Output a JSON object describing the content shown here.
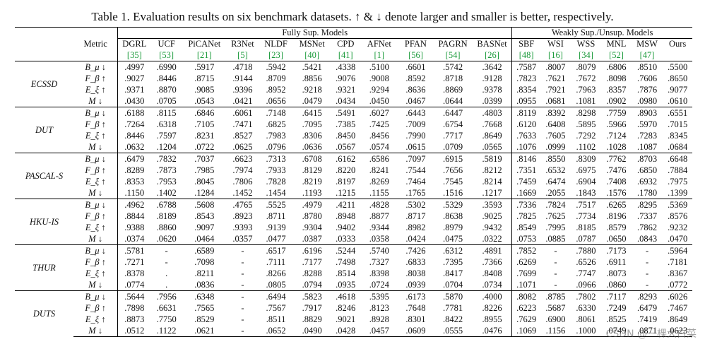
{
  "caption": "Table 1. Evaluation results on six benchmark datasets. ↑ & ↓ denote larger and smaller is better, respectively.",
  "groups": {
    "fully": "Fully Sup. Models",
    "weakly": "Weakly Sup./Unsup. Models"
  },
  "metric_header": "Metric",
  "methods": [
    "DGRL",
    "UCF",
    "PiCANet",
    "R3Net",
    "NLDF",
    "MSNet",
    "CPD",
    "AFNet",
    "PFAN",
    "PAGRN",
    "BASNet",
    "SBF",
    "WSI",
    "WSS",
    "MNL",
    "MSW",
    "Ours"
  ],
  "refs": [
    "[35]",
    "[53]",
    "[21]",
    "[5]",
    "[23]",
    "[40]",
    "[41]",
    "[1]",
    "[56]",
    "[54]",
    "[26]",
    "[48]",
    "[16]",
    "[34]",
    "[52]",
    "[47]",
    ""
  ],
  "metrics": [
    "B_μ ↓",
    "F_β ↑",
    "E_ξ ↑",
    "M ↓"
  ],
  "datasets": [
    {
      "name": "ECSSD",
      "rows": [
        [
          ".4997",
          ".6990",
          ".5917",
          ".4718",
          ".5942",
          ".5421",
          ".4338",
          ".5100",
          ".6601",
          ".5742",
          ".3642",
          ".7587",
          ".8007",
          ".8079",
          ".6806",
          ".8510",
          ".5500"
        ],
        [
          ".9027",
          ".8446",
          ".8715",
          ".9144",
          ".8709",
          ".8856",
          ".9076",
          ".9008",
          ".8592",
          ".8718",
          ".9128",
          ".7823",
          ".7621",
          ".7672",
          ".8098",
          ".7606",
          ".8650"
        ],
        [
          ".9371",
          ".8870",
          ".9085",
          ".9396",
          ".8952",
          ".9218",
          ".9321",
          ".9294",
          ".8636",
          ".8869",
          ".9378",
          ".8354",
          ".7921",
          ".7963",
          ".8357",
          ".7876",
          ".9077"
        ],
        [
          ".0430",
          ".0705",
          ".0543",
          ".0421",
          ".0656",
          ".0479",
          ".0434",
          ".0450",
          ".0467",
          ".0644",
          ".0399",
          ".0955",
          ".0681",
          ".1081",
          ".0902",
          ".0980",
          ".0610"
        ]
      ],
      "bold": [
        [
          10,
          16
        ],
        [
          3,
          16
        ],
        [
          3,
          16
        ],
        [
          10,
          16
        ]
      ]
    },
    {
      "name": "DUT",
      "rows": [
        [
          ".6188",
          ".8115",
          ".6846",
          ".6061",
          ".7148",
          ".6415",
          ".5491",
          ".6027",
          ".6443",
          ".6447",
          ".4803",
          ".8119",
          ".8392",
          ".8298",
          ".7759",
          ".8903",
          ".6551"
        ],
        [
          ".7264",
          ".6318",
          ".7105",
          ".7471",
          ".6825",
          ".7095",
          ".7385",
          ".7425",
          ".7009",
          ".6754",
          ".7668",
          ".6120",
          ".6408",
          ".5895",
          ".5966",
          ".5970",
          ".7015"
        ],
        [
          ".8446",
          ".7597",
          ".8231",
          ".8527",
          ".7983",
          ".8306",
          ".8450",
          ".8456",
          ".7990",
          ".7717",
          ".8649",
          ".7633",
          ".7605",
          ".7292",
          ".7124",
          ".7283",
          ".8345"
        ],
        [
          ".0632",
          ".1204",
          ".0722",
          ".0625",
          ".0796",
          ".0636",
          ".0567",
          ".0574",
          ".0615",
          ".0709",
          ".0565",
          ".1076",
          ".0999",
          ".1102",
          ".1028",
          ".1087",
          ".0684"
        ]
      ],
      "bold": [
        [
          10,
          16
        ],
        [
          10,
          16
        ],
        [
          10,
          16
        ],
        [
          10,
          16
        ]
      ]
    },
    {
      "name": "PASCAL-S",
      "rows": [
        [
          ".6479",
          ".7832",
          ".7037",
          ".6623",
          ".7313",
          ".6708",
          ".6162",
          ".6586",
          ".7097",
          ".6915",
          ".5819",
          ".8146",
          ".8550",
          ".8309",
          ".7762",
          ".8703",
          ".6648"
        ],
        [
          ".8289",
          ".7873",
          ".7985",
          ".7974",
          ".7933",
          ".8129",
          ".8220",
          ".8241",
          ".7544",
          ".7656",
          ".8212",
          ".7351",
          ".6532",
          ".6975",
          ".7476",
          ".6850",
          ".7884"
        ],
        [
          ".8353",
          ".7953",
          ".8045",
          ".7806",
          ".7828",
          ".8219",
          ".8197",
          ".8269",
          ".7464",
          ".7545",
          ".8214",
          ".7459",
          ".6474",
          ".6904",
          ".7408",
          ".6932",
          ".7975"
        ],
        [
          ".1150",
          ".1402",
          ".1284",
          ".1452",
          ".1454",
          ".1193",
          ".1215",
          ".1155",
          ".1765",
          ".1516",
          ".1217",
          ".1669",
          ".2055",
          ".1843",
          ".1576",
          ".1780",
          ".1399"
        ]
      ],
      "bold": [
        [
          10,
          16
        ],
        [
          0,
          16
        ],
        [
          0,
          16
        ],
        [
          0,
          16
        ]
      ]
    },
    {
      "name": "HKU-IS",
      "rows": [
        [
          ".4962",
          ".6788",
          ".5608",
          ".4765",
          ".5525",
          ".4979",
          ".4211",
          ".4828",
          ".5302",
          ".5329",
          ".3593",
          ".7336",
          ".7824",
          ".7517",
          ".6265",
          ".8295",
          ".5369"
        ],
        [
          ".8844",
          ".8189",
          ".8543",
          ".8923",
          ".8711",
          ".8780",
          ".8948",
          ".8877",
          ".8717",
          ".8638",
          ".9025",
          ".7825",
          ".7625",
          ".7734",
          ".8196",
          ".7337",
          ".8576"
        ],
        [
          ".9388",
          ".8860",
          ".9097",
          ".9393",
          ".9139",
          ".9304",
          ".9402",
          ".9344",
          ".8982",
          ".8979",
          ".9432",
          ".8549",
          ".7995",
          ".8185",
          ".8579",
          ".7862",
          ".9232"
        ],
        [
          ".0374",
          ".0620",
          ".0464",
          ".0357",
          ".0477",
          ".0387",
          ".0333",
          ".0358",
          ".0424",
          ".0475",
          ".0322",
          ".0753",
          ".0885",
          ".0787",
          ".0650",
          ".0843",
          ".0470"
        ]
      ],
      "bold": [
        [
          10,
          16
        ],
        [
          10,
          16
        ],
        [
          10,
          16
        ],
        [
          10,
          16
        ]
      ]
    },
    {
      "name": "THUR",
      "rows": [
        [
          ".5781",
          "-",
          ".6589",
          "-",
          ".6517",
          ".6196",
          ".5244",
          ".5740",
          ".7426",
          ".6312",
          ".4891",
          ".7852",
          "-",
          ".7880",
          ".7173",
          "-",
          ".5964"
        ],
        [
          ".7271",
          "-",
          ".7098",
          "-",
          ".7111",
          ".7177",
          ".7498",
          ".7327",
          ".6833",
          ".7395",
          ".7366",
          ".6269",
          "-",
          ".6526",
          ".6911",
          "-",
          ".7181"
        ],
        [
          ".8378",
          ".",
          ".8211",
          "-",
          ".8266",
          ".8288",
          ".8514",
          ".8398",
          ".8038",
          ".8417",
          ".8408",
          ".7699",
          "-",
          ".7747",
          ".8073",
          "-",
          ".8367"
        ],
        [
          ".0774",
          ".",
          ".0836",
          "-",
          ".0805",
          ".0794",
          ".0935",
          ".0724",
          ".0939",
          ".0704",
          ".0734",
          ".1071",
          "-",
          ".0966",
          ".0860",
          "-",
          ".0772"
        ]
      ],
      "bold": [
        [
          10,
          16
        ],
        [
          6,
          16
        ],
        [
          6,
          16
        ],
        [
          9,
          16
        ]
      ]
    },
    {
      "name": "DUTS",
      "rows": [
        [
          ".5644",
          ".7956",
          ".6348",
          "-",
          ".6494",
          ".5823",
          ".4618",
          ".5395",
          ".6173",
          ".5870",
          ".4000",
          ".8082",
          ".8785",
          ".7802",
          ".7117",
          ".8293",
          ".6026"
        ],
        [
          ".7898",
          ".6631",
          ".7565",
          "-",
          ".7567",
          ".7917",
          ".8246",
          ".8123",
          ".7648",
          ".7781",
          ".8226",
          ".6223",
          ".5687",
          ".6330",
          ".7249",
          ".6479",
          ".7467"
        ],
        [
          ".8873",
          ".7750",
          ".8529",
          "-",
          ".8511",
          ".8829",
          ".9021",
          ".8928",
          ".8301",
          ".8422",
          ".8955",
          ".7629",
          ".6900",
          ".8061",
          ".8525",
          ".7419",
          ".8649"
        ],
        [
          ".0512",
          ".1122",
          ".0621",
          "-",
          ".0652",
          ".0490",
          ".0428",
          ".0457",
          ".0609",
          ".0555",
          ".0476",
          ".1069",
          ".1156",
          ".1000",
          ".0749",
          ".0871",
          ".0623"
        ]
      ],
      "bold": [
        [
          10,
          16
        ],
        [
          6,
          16
        ],
        [
          6,
          16
        ],
        [
          6,
          16
        ]
      ]
    }
  ],
  "watermark": "CSDN @一棵大白菜"
}
